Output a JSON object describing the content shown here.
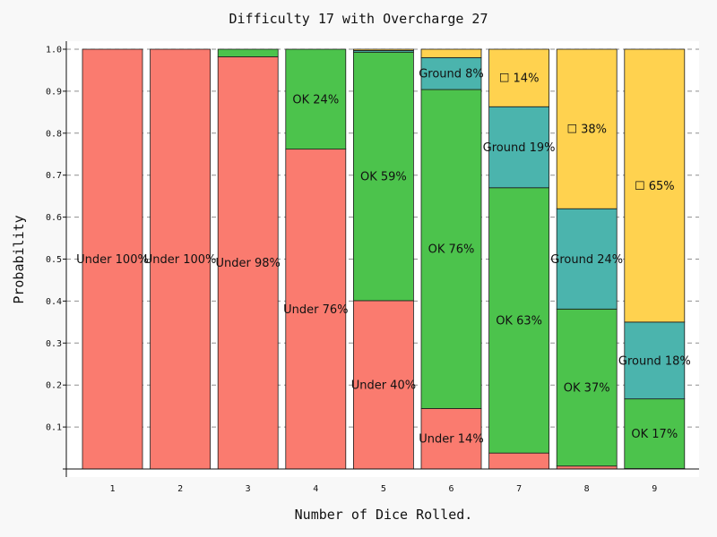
{
  "chart_data": {
    "type": "bar",
    "stacked": true,
    "title": "Difficulty 17 with Overcharge 27",
    "xlabel": "Number of Dice Rolled.",
    "ylabel": "Probability",
    "ylim": [
      0,
      1.0
    ],
    "yticks": [
      "0.1",
      "0.2",
      "0.3",
      "0.4",
      "0.5",
      "0.6",
      "0.7",
      "0.8",
      "0.9",
      "1.0"
    ],
    "grid": true,
    "categories": [
      "1",
      "2",
      "3",
      "4",
      "5",
      "6",
      "7",
      "8",
      "9"
    ],
    "series": [
      {
        "color": "#fa7b6f",
        "values": [
          1.0,
          1.0,
          0.982,
          0.762,
          0.401,
          0.144,
          0.038,
          0.007,
          0.001
        ],
        "labels": [
          "Under 100%",
          "Under 100%",
          "Under 98%",
          "Under 76%",
          "Under 40%",
          "Under 14%",
          "",
          "",
          ""
        ]
      },
      {
        "color": "#4cc34c",
        "values": [
          0.0,
          0.0,
          0.018,
          0.238,
          0.592,
          0.76,
          0.632,
          0.374,
          0.166
        ],
        "labels": [
          "",
          "",
          "",
          "OK 24%",
          "OK 59%",
          "OK 76%",
          "OK 63%",
          "OK 37%",
          "OK 17%"
        ]
      },
      {
        "color": "#4bb4ad",
        "values": [
          0.0,
          0.0,
          0.0,
          0.0,
          0.004,
          0.076,
          0.193,
          0.239,
          0.183
        ],
        "labels": [
          "",
          "",
          "",
          "",
          "",
          "Ground 8%",
          "Ground 19%",
          "Ground 24%",
          "Ground 18%"
        ]
      },
      {
        "color": "#ffd24f",
        "values": [
          0.0,
          0.0,
          0.0,
          0.0,
          0.003,
          0.02,
          0.137,
          0.38,
          0.65
        ],
        "labels": [
          "",
          "",
          "",
          "",
          "",
          "",
          "☐ 14%",
          "☐ 38%",
          "☐ 65%"
        ]
      }
    ]
  }
}
